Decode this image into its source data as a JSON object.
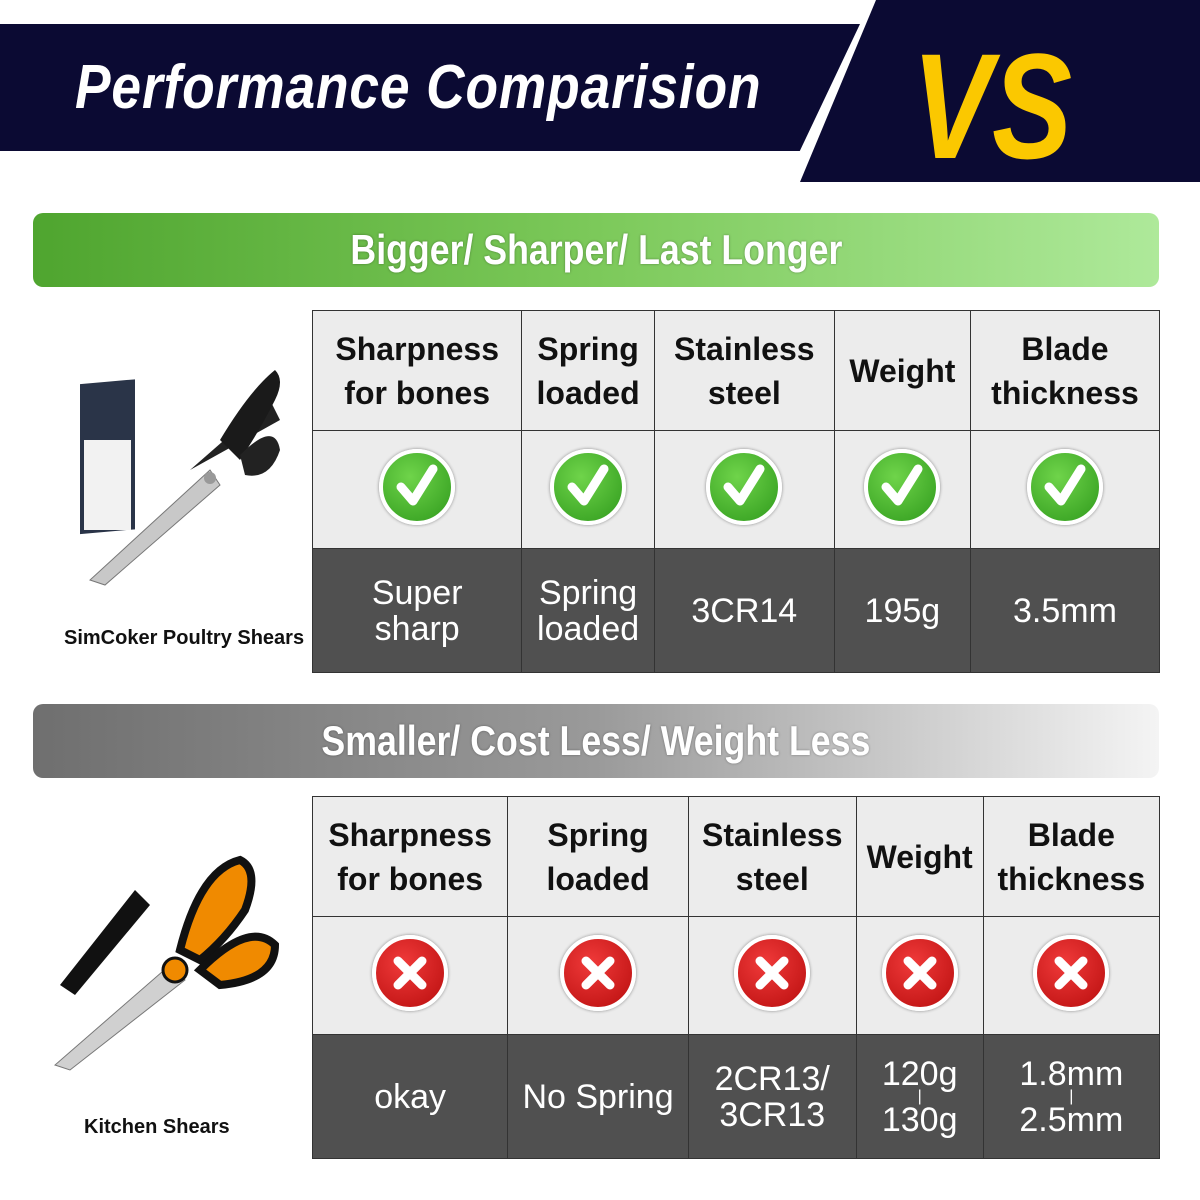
{
  "header": {
    "title": "Performance Comparision",
    "vs": "VS"
  },
  "colors": {
    "navy": "#0b0a33",
    "yellow": "#fbc800",
    "green": "#4fa52f",
    "red": "#d01414",
    "dark_cell": "#505050"
  },
  "columns": [
    [
      "Sharpness",
      "for bones"
    ],
    [
      "Spring",
      "loaded"
    ],
    [
      "Stainless",
      "steel"
    ],
    [
      "Weight"
    ],
    [
      "Blade",
      "thickness"
    ]
  ],
  "product_a": {
    "banner": "Bigger/ Sharper/ Last Longer",
    "name": "SimCoker Poultry Shears",
    "icon": "check-icon",
    "values": [
      [
        "Super",
        "sharp"
      ],
      [
        "Spring",
        "loaded"
      ],
      [
        "3CR14"
      ],
      [
        "195g"
      ],
      [
        "3.5mm"
      ]
    ]
  },
  "product_b": {
    "banner": "Smaller/ Cost Less/ Weight Less",
    "name": "Kitchen Shears",
    "icon": "cross-icon",
    "values": [
      [
        "okay"
      ],
      [
        "No Spring"
      ],
      [
        "2CR13/",
        "3CR13"
      ],
      [
        "120g",
        "|",
        "130g"
      ],
      [
        "1.8mm",
        "|",
        "2.5mm"
      ]
    ]
  }
}
